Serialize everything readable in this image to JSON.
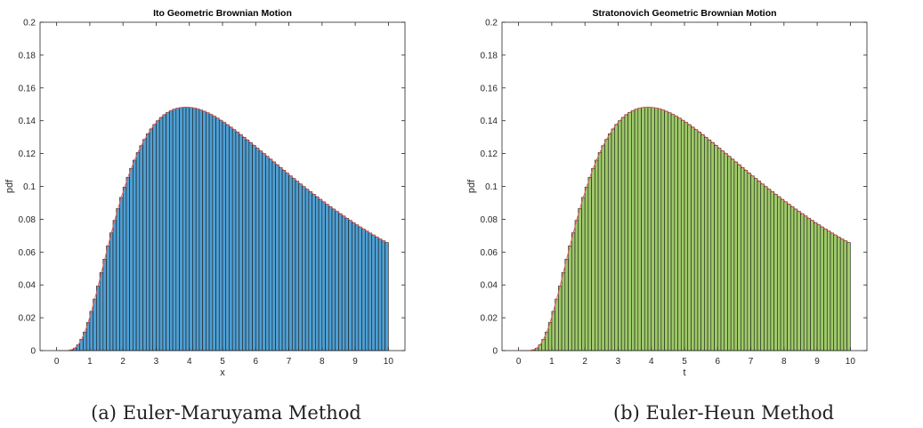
{
  "panels": [
    {
      "caption_label": "(a)",
      "caption_text": "Euler-Maruyama Method"
    },
    {
      "caption_label": "(b)",
      "caption_text": "Euler-Heun Method"
    }
  ],
  "chart_data": [
    {
      "type": "bar",
      "title": "Ito Geometric Brownian Motion",
      "xlabel": "x",
      "ylabel": "pdf",
      "xlim": [
        -0.5,
        10.5
      ],
      "ylim": [
        0,
        0.2
      ],
      "xticks": [
        0,
        1,
        2,
        3,
        4,
        5,
        6,
        7,
        8,
        9,
        10
      ],
      "yticks": [
        0,
        0.02,
        0.04,
        0.06,
        0.08,
        0.1,
        0.12,
        0.14,
        0.16,
        0.18,
        0.2
      ],
      "ytick_labels": [
        "0",
        "0.02",
        "0.04",
        "0.06",
        "0.08",
        "0.1",
        "0.12",
        "0.14",
        "0.16",
        "0.18",
        "0.2"
      ],
      "bin_width": 0.1,
      "bin_start": 0.0,
      "bar_color": "#4f9fd3",
      "edge_color": "#1a1a1a",
      "curve_color": "#e06060",
      "grid": false,
      "box": true,
      "values": [
        0.0,
        0.0,
        0.0,
        0.0001,
        0.0005,
        0.0015,
        0.0035,
        0.0068,
        0.0113,
        0.0171,
        0.0239,
        0.0314,
        0.0393,
        0.0475,
        0.0557,
        0.0638,
        0.0717,
        0.0793,
        0.0865,
        0.0933,
        0.0996,
        0.1055,
        0.111,
        0.116,
        0.1206,
        0.1248,
        0.1286,
        0.132,
        0.135,
        0.1377,
        0.14,
        0.142,
        0.1437,
        0.1451,
        0.1462,
        0.1471,
        0.1477,
        0.1481,
        0.1483,
        0.1483,
        0.1481,
        0.1478,
        0.1473,
        0.1466,
        0.1458,
        0.1449,
        0.1439,
        0.1428,
        0.1416,
        0.1403,
        0.139,
        0.1376,
        0.1361,
        0.1346,
        0.1331,
        0.1315,
        0.1299,
        0.1283,
        0.1267,
        0.125,
        0.1233,
        0.1216,
        0.12,
        0.1183,
        0.1166,
        0.1149,
        0.1132,
        0.1115,
        0.1098,
        0.1081,
        0.1064,
        0.1048,
        0.1032,
        0.1015,
        0.0999,
        0.0983,
        0.0968,
        0.0952,
        0.0937,
        0.0921,
        0.0906,
        0.0891,
        0.0877,
        0.0862,
        0.0848,
        0.0834,
        0.082,
        0.0806,
        0.0793,
        0.0779,
        0.0766,
        0.0753,
        0.0741,
        0.0728,
        0.0716,
        0.0704,
        0.0692,
        0.068,
        0.0669,
        0.0658
      ]
    },
    {
      "type": "bar",
      "title": "Stratonovich Geometric Brownian Motion",
      "xlabel": "t",
      "ylabel": "pdf",
      "xlim": [
        -0.5,
        10.5
      ],
      "ylim": [
        0,
        0.2
      ],
      "xticks": [
        0,
        1,
        2,
        3,
        4,
        5,
        6,
        7,
        8,
        9,
        10
      ],
      "yticks": [
        0,
        0.02,
        0.04,
        0.06,
        0.08,
        0.1,
        0.12,
        0.14,
        0.16,
        0.18,
        0.2
      ],
      "ytick_labels": [
        "0",
        "0.02",
        "0.04",
        "0.06",
        "0.08",
        "0.1",
        "0.12",
        "0.14",
        "0.16",
        "0.18",
        "0.2"
      ],
      "bin_width": 0.1,
      "bin_start": 0.0,
      "bar_color": "#9fca6a",
      "edge_color": "#1a1a1a",
      "curve_color": "#e06060",
      "grid": false,
      "box": true,
      "values": [
        0.0,
        0.0,
        0.0,
        0.0001,
        0.0005,
        0.0015,
        0.0035,
        0.0068,
        0.0113,
        0.0171,
        0.0239,
        0.0314,
        0.0393,
        0.0475,
        0.0557,
        0.0638,
        0.0717,
        0.0793,
        0.0865,
        0.0933,
        0.0996,
        0.1055,
        0.111,
        0.116,
        0.1206,
        0.1248,
        0.1286,
        0.132,
        0.135,
        0.1377,
        0.14,
        0.142,
        0.1437,
        0.1451,
        0.1462,
        0.1471,
        0.1477,
        0.1481,
        0.1483,
        0.1483,
        0.1481,
        0.1478,
        0.1473,
        0.1466,
        0.1458,
        0.1449,
        0.1439,
        0.1428,
        0.1416,
        0.1403,
        0.139,
        0.1376,
        0.1361,
        0.1346,
        0.1331,
        0.1315,
        0.1299,
        0.1283,
        0.1267,
        0.125,
        0.1233,
        0.1216,
        0.12,
        0.1183,
        0.1166,
        0.1149,
        0.1132,
        0.1115,
        0.1098,
        0.1081,
        0.1064,
        0.1048,
        0.1032,
        0.1015,
        0.0999,
        0.0983,
        0.0968,
        0.0952,
        0.0937,
        0.0921,
        0.0906,
        0.0891,
        0.0877,
        0.0862,
        0.0848,
        0.0834,
        0.082,
        0.0806,
        0.0793,
        0.0779,
        0.0766,
        0.0753,
        0.0741,
        0.0728,
        0.0716,
        0.0704,
        0.0692,
        0.068,
        0.0669,
        0.0658
      ]
    }
  ]
}
